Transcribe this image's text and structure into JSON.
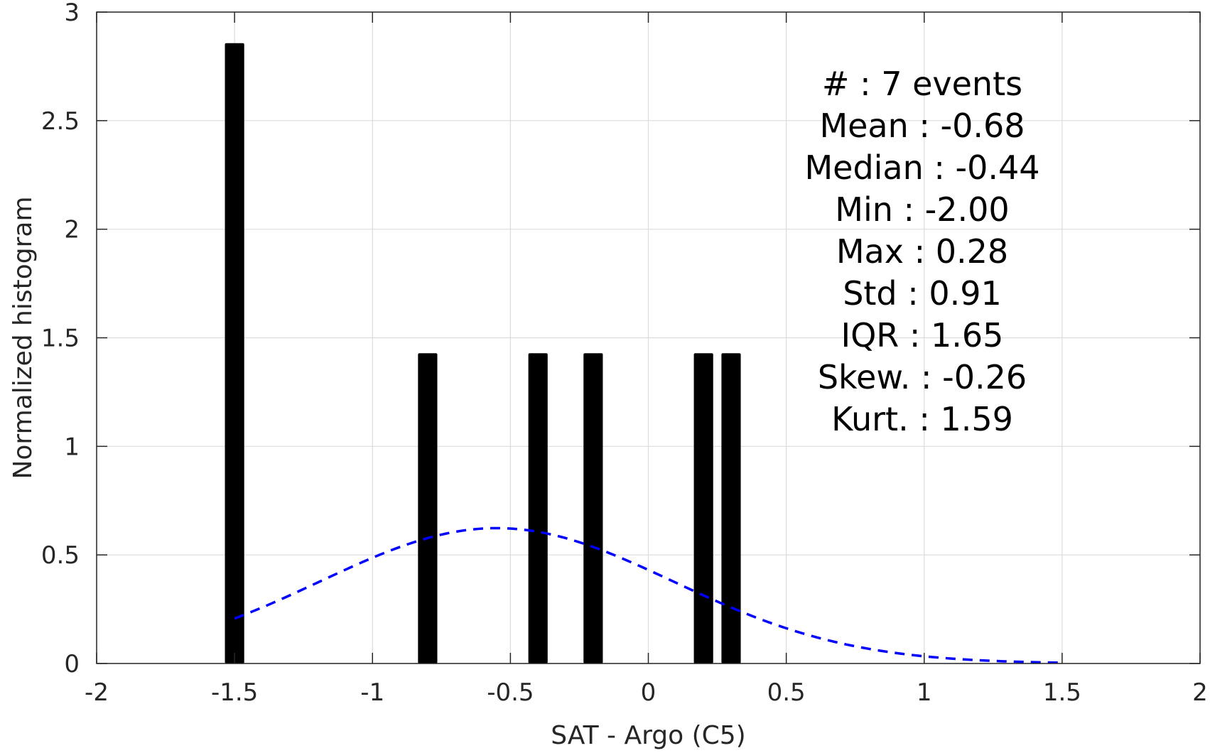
{
  "chart_data": {
    "type": "bar",
    "xlabel": "SAT - Argo (C5)",
    "ylabel": "Normalized histogram",
    "xlim": [
      -2,
      2
    ],
    "ylim": [
      0,
      3
    ],
    "xticks": [
      -2,
      -1.5,
      -1,
      -0.5,
      0,
      0.5,
      1,
      1.5,
      2
    ],
    "xtick_labels": [
      "-2",
      "-1.5",
      "-1",
      "-0.5",
      "0",
      "0.5",
      "1",
      "1.5",
      "2"
    ],
    "yticks": [
      0,
      0.5,
      1,
      1.5,
      2,
      2.5,
      3
    ],
    "ytick_labels": [
      "0",
      "0.5",
      "1",
      "1.5",
      "2",
      "2.5",
      "3"
    ],
    "grid": true,
    "bar_width": 0.07,
    "bars": [
      {
        "x": -1.5,
        "value": 2.857
      },
      {
        "x": -0.8,
        "value": 1.429
      },
      {
        "x": -0.4,
        "value": 1.429
      },
      {
        "x": -0.2,
        "value": 1.429
      },
      {
        "x": 0.2,
        "value": 1.429
      },
      {
        "x": 0.3,
        "value": 1.429
      }
    ],
    "bar_color": "#000000",
    "fit_curve": {
      "type": "normal",
      "mean": -0.55,
      "std": 0.64,
      "x_range": [
        -1.5,
        1.5
      ],
      "color": "#0000ff",
      "style": "dashed"
    },
    "stats": [
      {
        "label": "#  ",
        "value": "7 events"
      },
      {
        "label": "Mean",
        "value": "-0.68"
      },
      {
        "label": "Median",
        "value": "-0.44"
      },
      {
        "label": "Min",
        "value": "-2.00"
      },
      {
        "label": "Max",
        "value": "0.28"
      },
      {
        "label": "Std",
        "value": "0.91"
      },
      {
        "label": "IQR",
        "value": "1.65"
      },
      {
        "label": "Skew.",
        "value": "-0.26"
      },
      {
        "label": "Kurt.",
        "value": "1.59"
      }
    ]
  }
}
